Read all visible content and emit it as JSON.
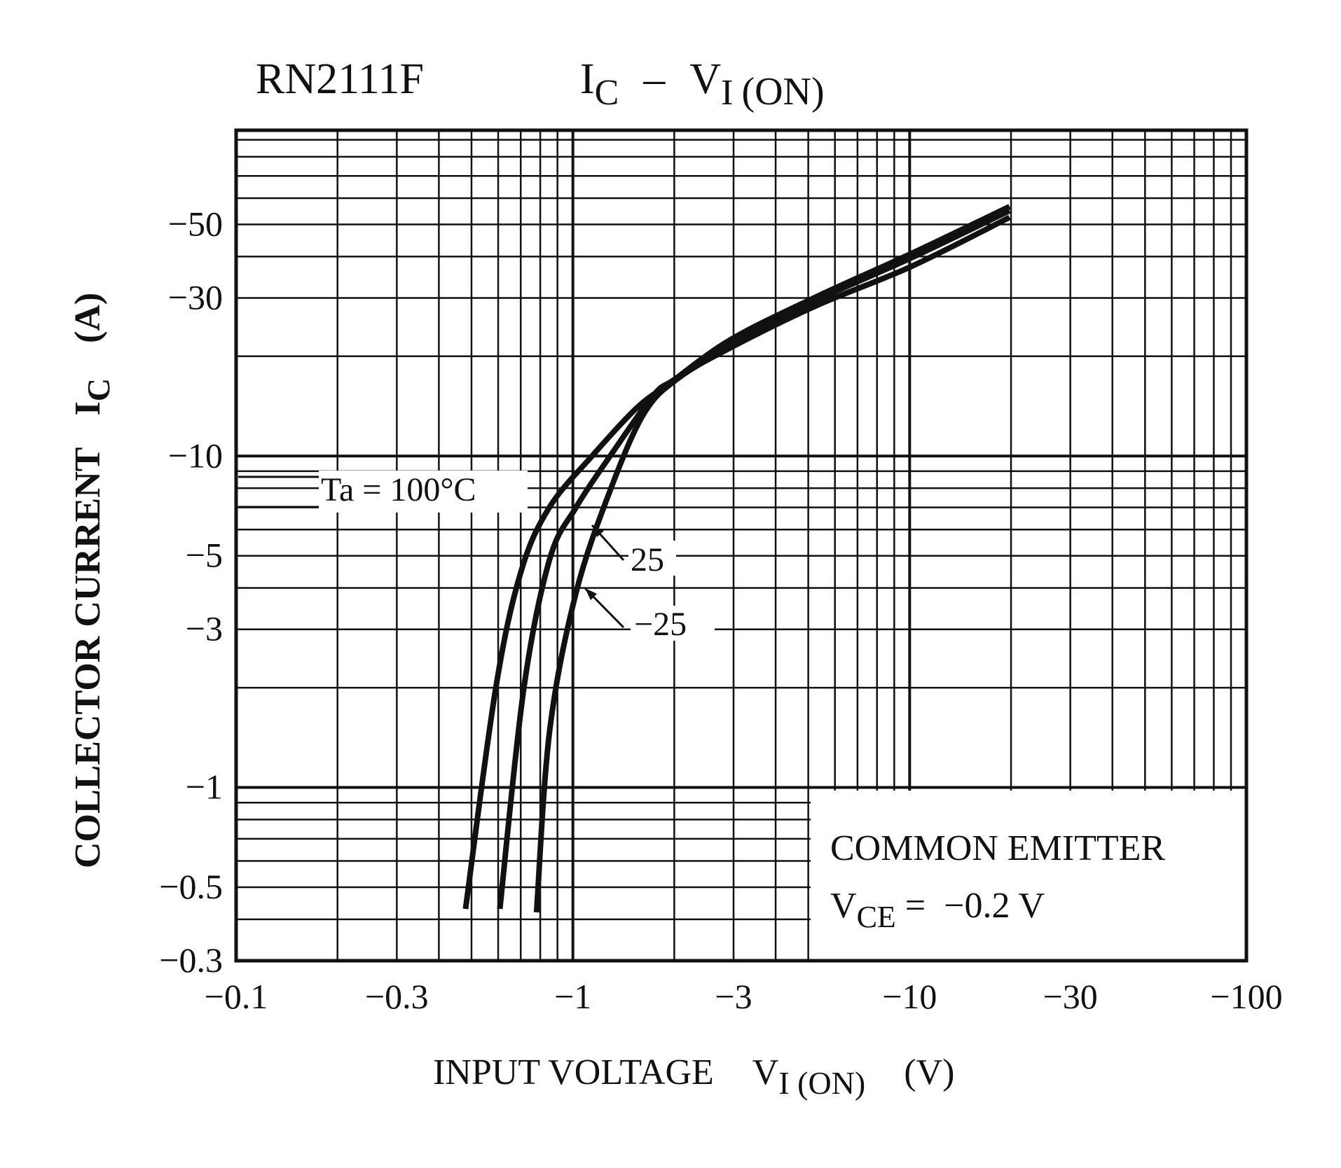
{
  "chart_data": {
    "type": "line",
    "title": {
      "part": "RN2111F",
      "main": "I",
      "main_sub": "C",
      "dash": "–",
      "v": "V",
      "v_sub": "I",
      "v_tail": "(ON)"
    },
    "xlabel": {
      "text": "INPUT VOLTAGE",
      "v": "V",
      "v_sub": "I (ON)",
      "unit": "(V)"
    },
    "ylabel": {
      "text": "COLLECTOR CURRENT",
      "i": "I",
      "i_sub": "C",
      "unit": "(A)"
    },
    "xscale": "log",
    "yscale": "log",
    "xlim": [
      0.1,
      100
    ],
    "ylim": [
      0.3,
      100
    ],
    "grid": true,
    "x_ticks": [
      {
        "value": 0.1,
        "label": "−0.1"
      },
      {
        "value": 0.3,
        "label": "−0.3"
      },
      {
        "value": 1,
        "label": "−1"
      },
      {
        "value": 3,
        "label": "−3"
      },
      {
        "value": 10,
        "label": "−10"
      },
      {
        "value": 30,
        "label": "−30"
      },
      {
        "value": 100,
        "label": "−100"
      }
    ],
    "y_ticks": [
      {
        "value": 0.3,
        "label": "−0.3"
      },
      {
        "value": 0.5,
        "label": "−0.5"
      },
      {
        "value": 1,
        "label": "−1"
      },
      {
        "value": 3,
        "label": "−3"
      },
      {
        "value": 5,
        "label": "−5"
      },
      {
        "value": 10,
        "label": "−10"
      },
      {
        "value": 30,
        "label": "−30"
      },
      {
        "value": 50,
        "label": "−50"
      }
    ],
    "series": [
      {
        "name": "Ta = 100°C",
        "x": [
          0.48,
          0.59,
          0.7,
          0.85,
          1.14,
          1.54,
          1.94,
          2.93,
          5.27,
          10.1,
          19.8
        ],
        "y": [
          0.43,
          1.99,
          4.45,
          6.98,
          10,
          13.9,
          16.6,
          22.4,
          30.2,
          40.8,
          56.6
        ]
      },
      {
        "name": "25",
        "x": [
          0.607,
          0.715,
          0.853,
          1.02,
          1.29,
          1.73,
          2.0,
          2.93,
          5.27,
          10.1,
          19.8
        ],
        "y": [
          0.43,
          1.99,
          4.88,
          6.98,
          10,
          15.2,
          17.0,
          21.8,
          29.5,
          39.6,
          55
        ]
      },
      {
        "name": "−25",
        "x": [
          0.78,
          0.853,
          1.02,
          1.29,
          1.63,
          2.06,
          2.93,
          5.27,
          10.1,
          19.8
        ],
        "y": [
          0.42,
          1.48,
          3.84,
          7.87,
          13.5,
          17.2,
          21.2,
          28.4,
          37.3,
          52.5
        ]
      }
    ],
    "annotations": {
      "ta100": "Ta = 100°C",
      "t25": "25",
      "tm25": "−25"
    },
    "legend_box": {
      "line1": "COMMON EMITTER",
      "v": "V",
      "v_sub": "CE",
      "rest": " =  −0.2 V"
    }
  }
}
